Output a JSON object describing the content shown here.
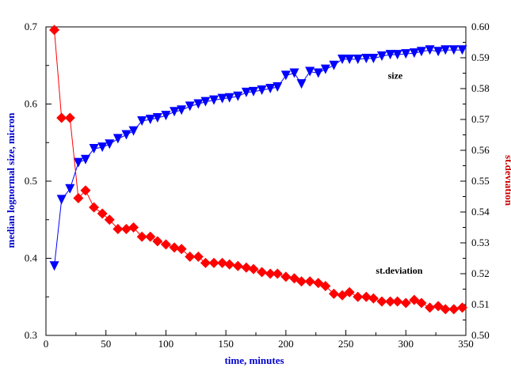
{
  "chart_data": {
    "type": "line",
    "title": "",
    "xlabel": "time, minutes",
    "ylabel_left": "median lognormal size, micron",
    "ylabel_right": "st.deviation",
    "xlim": [
      0,
      350
    ],
    "ylim_left": [
      0.3,
      0.7
    ],
    "ylim_right": [
      0.5,
      0.6
    ],
    "x_ticks": [
      0,
      50,
      100,
      150,
      200,
      250,
      300,
      350
    ],
    "x_tick_labels": [
      "0",
      "50",
      "100",
      "150",
      "200",
      "250",
      "300",
      "350"
    ],
    "y_left_ticks": [
      0.3,
      0.4,
      0.5,
      0.6,
      0.7
    ],
    "y_left_tick_labels": [
      "0.3",
      "0.4",
      "0.5",
      "0.6",
      "0.7"
    ],
    "y_right_ticks": [
      0.5,
      0.51,
      0.52,
      0.53,
      0.54,
      0.55,
      0.56,
      0.57,
      0.58,
      0.59,
      0.6
    ],
    "y_right_tick_labels": [
      "0.50",
      "0.51",
      "0.52",
      "0.53",
      "0.54",
      "0.55",
      "0.56",
      "0.57",
      "0.58",
      "0.59",
      "0.60"
    ],
    "annotations": [
      {
        "text": "size",
        "x": 285,
        "y_left": 0.633
      },
      {
        "text": "st.deviation",
        "x": 275,
        "y_left": 0.38
      }
    ],
    "series": [
      {
        "name": "size",
        "axis": "left",
        "color": "#0000ff",
        "marker": "triangle-down",
        "x": [
          7,
          13,
          20,
          27,
          33,
          40,
          47,
          53,
          60,
          67,
          73,
          80,
          87,
          93,
          100,
          107,
          113,
          120,
          127,
          133,
          140,
          147,
          153,
          160,
          167,
          173,
          180,
          187,
          193,
          200,
          207,
          213,
          220,
          227,
          233,
          240,
          247,
          253,
          260,
          267,
          273,
          280,
          287,
          293,
          300,
          307,
          313,
          320,
          327,
          333,
          340,
          347
        ],
        "values": [
          0.39,
          0.476,
          0.49,
          0.524,
          0.528,
          0.542,
          0.544,
          0.548,
          0.555,
          0.56,
          0.565,
          0.578,
          0.58,
          0.582,
          0.585,
          0.59,
          0.592,
          0.597,
          0.6,
          0.603,
          0.605,
          0.607,
          0.608,
          0.61,
          0.615,
          0.616,
          0.618,
          0.62,
          0.622,
          0.637,
          0.64,
          0.626,
          0.642,
          0.64,
          0.645,
          0.65,
          0.658,
          0.658,
          0.658,
          0.659,
          0.659,
          0.662,
          0.664,
          0.664,
          0.665,
          0.666,
          0.668,
          0.67,
          0.668,
          0.67,
          0.67,
          0.67
        ]
      },
      {
        "name": "st.deviation",
        "axis": "right",
        "color": "#ff0000",
        "marker": "diamond",
        "x": [
          7,
          13,
          20,
          27,
          33,
          40,
          47,
          53,
          60,
          67,
          73,
          80,
          87,
          93,
          100,
          107,
          113,
          120,
          127,
          133,
          140,
          147,
          153,
          160,
          167,
          173,
          180,
          187,
          193,
          200,
          207,
          213,
          220,
          227,
          233,
          240,
          247,
          253,
          260,
          267,
          273,
          280,
          287,
          293,
          300,
          307,
          313,
          320,
          327,
          333,
          340,
          347
        ],
        "values": [
          0.599,
          0.5705,
          0.5705,
          0.5445,
          0.547,
          0.5415,
          0.5395,
          0.5375,
          0.5345,
          0.5345,
          0.535,
          0.532,
          0.532,
          0.5305,
          0.5295,
          0.5285,
          0.528,
          0.5255,
          0.5255,
          0.5235,
          0.5235,
          0.5235,
          0.523,
          0.5225,
          0.522,
          0.5215,
          0.5205,
          0.52,
          0.52,
          0.519,
          0.5185,
          0.5175,
          0.5175,
          0.517,
          0.516,
          0.5135,
          0.513,
          0.514,
          0.5125,
          0.5125,
          0.512,
          0.511,
          0.511,
          0.511,
          0.5105,
          0.5115,
          0.5105,
          0.509,
          0.5095,
          0.5085,
          0.5085,
          0.509
        ]
      }
    ]
  }
}
